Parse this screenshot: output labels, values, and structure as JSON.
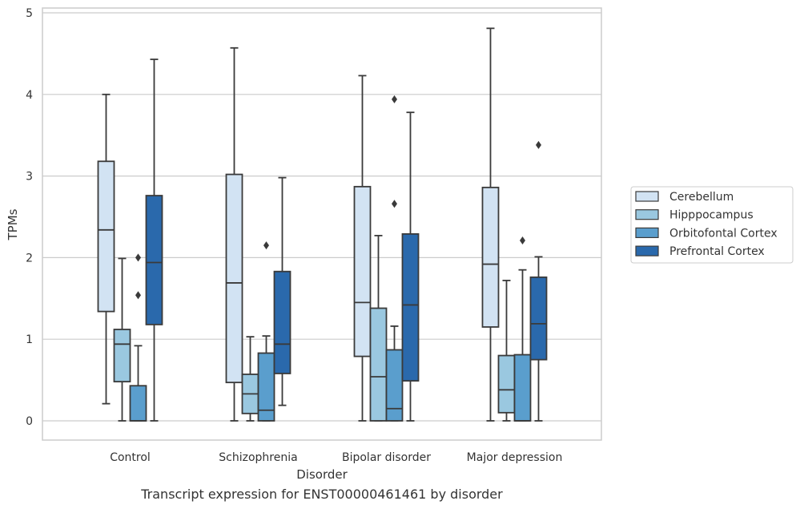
{
  "chart_data": {
    "type": "boxplot",
    "caption": "Transcript expression for ENST00000461461 by disorder",
    "xlabel": "Disorder",
    "ylabel": "TPMs",
    "ylim": [
      -0.23,
      5.07
    ],
    "yticks": [
      0,
      1,
      2,
      3,
      4,
      5
    ],
    "ytick_labels": [
      "0",
      "1",
      "2",
      "3",
      "4",
      "5"
    ],
    "grid": "horizontal",
    "legend_position": "right",
    "categories": [
      "Control",
      "Schizophrenia",
      "Bipolar disorder",
      "Major depression"
    ],
    "series": [
      {
        "name": "Cerebellum",
        "color": "#d2e3f3",
        "boxes": [
          {
            "whislo": 0.21,
            "q1": 1.34,
            "med": 2.34,
            "q3": 3.18,
            "whishi": 4.0,
            "fliers": []
          },
          {
            "whislo": 0.0,
            "q1": 0.47,
            "med": 1.69,
            "q3": 3.02,
            "whishi": 4.57,
            "fliers": []
          },
          {
            "whislo": 0.0,
            "q1": 0.79,
            "med": 1.45,
            "q3": 2.87,
            "whishi": 4.23,
            "fliers": []
          },
          {
            "whislo": 0.0,
            "q1": 1.15,
            "med": 1.92,
            "q3": 2.86,
            "whishi": 4.81,
            "fliers": []
          }
        ]
      },
      {
        "name": "Hipppocampus",
        "color": "#9ac8e0",
        "boxes": [
          {
            "whislo": 0.0,
            "q1": 0.48,
            "med": 0.94,
            "q3": 1.12,
            "whishi": 1.99,
            "fliers": []
          },
          {
            "whislo": 0.0,
            "q1": 0.09,
            "med": 0.33,
            "q3": 0.57,
            "whishi": 1.03,
            "fliers": []
          },
          {
            "whislo": 0.0,
            "q1": 0.0,
            "med": 0.54,
            "q3": 1.38,
            "whishi": 2.27,
            "fliers": []
          },
          {
            "whislo": 0.0,
            "q1": 0.1,
            "med": 0.38,
            "q3": 0.8,
            "whishi": 1.72,
            "fliers": []
          }
        ]
      },
      {
        "name": "Orbitofontal Cortex",
        "color": "#5a9ecd",
        "boxes": [
          {
            "whislo": 0.0,
            "q1": 0.0,
            "med": 0.0,
            "q3": 0.43,
            "whishi": 0.92,
            "fliers": [
              1.54,
              2.0
            ]
          },
          {
            "whislo": 0.0,
            "q1": 0.0,
            "med": 0.13,
            "q3": 0.83,
            "whishi": 1.04,
            "fliers": [
              2.15
            ]
          },
          {
            "whislo": 0.0,
            "q1": 0.0,
            "med": 0.15,
            "q3": 0.87,
            "whishi": 1.16,
            "fliers": [
              2.66,
              3.94
            ]
          },
          {
            "whislo": 0.0,
            "q1": 0.0,
            "med": 0.0,
            "q3": 0.81,
            "whishi": 1.85,
            "fliers": [
              2.21
            ]
          }
        ]
      },
      {
        "name": "Prefrontal Cortex",
        "color": "#2a69ac",
        "boxes": [
          {
            "whislo": 0.0,
            "q1": 1.18,
            "med": 1.94,
            "q3": 2.76,
            "whishi": 4.43,
            "fliers": []
          },
          {
            "whislo": 0.19,
            "q1": 0.58,
            "med": 0.94,
            "q3": 1.83,
            "whishi": 2.98,
            "fliers": []
          },
          {
            "whislo": 0.0,
            "q1": 0.49,
            "med": 1.42,
            "q3": 2.29,
            "whishi": 3.78,
            "fliers": []
          },
          {
            "whislo": 0.0,
            "q1": 0.75,
            "med": 1.19,
            "q3": 1.76,
            "whishi": 2.01,
            "fliers": [
              3.38
            ]
          }
        ]
      }
    ]
  }
}
